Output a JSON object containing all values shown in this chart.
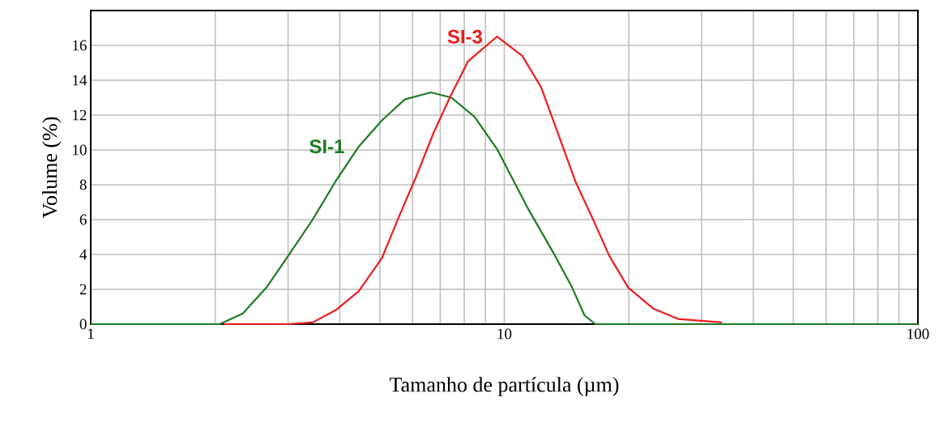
{
  "chart_data": {
    "type": "line",
    "xlabel": "Tamanho de partícula (µm)",
    "ylabel": "Volume (%)",
    "log": "x",
    "xlim": [
      1,
      100
    ],
    "xticks": [
      1,
      10,
      100
    ],
    "ylim": [
      0,
      18
    ],
    "yticks": [
      0,
      2,
      4,
      6,
      8,
      10,
      12,
      14,
      16
    ],
    "grid": true,
    "marker": "none",
    "line_style": "solid",
    "series": [
      {
        "name": "SI-1",
        "color": "#1e7b24",
        "x": [
          1,
          2.05,
          2.33,
          2.66,
          3.02,
          3.44,
          3.91,
          4.45,
          5.06,
          5.75,
          6.65,
          7.45,
          8.47,
          9.63,
          11.43,
          13.14,
          14.59,
          15.63,
          16.6,
          100
        ],
        "values": [
          0,
          0,
          0.6,
          2.1,
          4.0,
          6.0,
          8.2,
          10.2,
          11.7,
          12.9,
          13.3,
          13.0,
          11.9,
          10.0,
          6.6,
          4.1,
          2.1,
          0.5,
          0,
          0
        ]
      },
      {
        "name": "SI-3",
        "color": "#ee1c1c",
        "x": [
          2.1,
          3.0,
          3.44,
          3.91,
          4.45,
          5.06,
          5.57,
          6.13,
          6.75,
          7.45,
          8.18,
          9.6,
          11.05,
          12.27,
          13.6,
          14.85,
          16.47,
          17.96,
          19.93,
          22.9,
          26.3,
          33.6
        ],
        "values": [
          0,
          0,
          0.1,
          0.8,
          1.9,
          3.8,
          6.2,
          8.5,
          11.0,
          13.2,
          15.1,
          16.5,
          15.4,
          13.6,
          10.7,
          8.2,
          5.9,
          3.9,
          2.1,
          0.9,
          0.3,
          0.1
        ]
      }
    ]
  }
}
